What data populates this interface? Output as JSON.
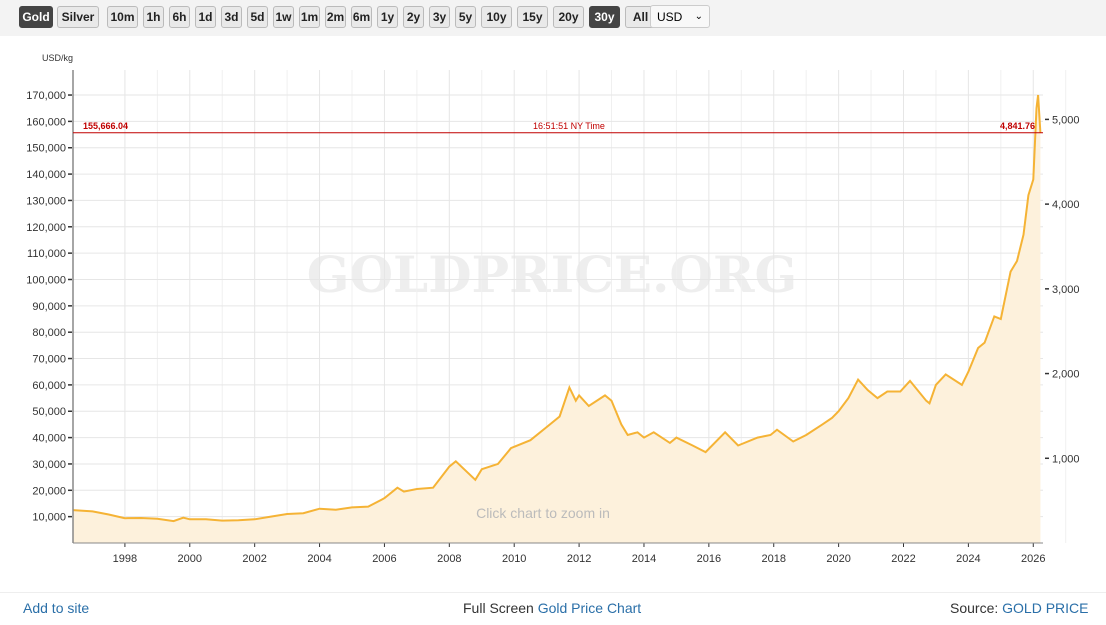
{
  "toolbar": {
    "metals": [
      {
        "label": "Gold",
        "active": true
      },
      {
        "label": "Silver",
        "active": false
      }
    ],
    "ranges": [
      {
        "label": "10m"
      },
      {
        "label": "1h"
      },
      {
        "label": "6h"
      },
      {
        "label": "1d"
      },
      {
        "label": "3d"
      },
      {
        "label": "5d"
      },
      {
        "label": "1w"
      },
      {
        "label": "1m"
      },
      {
        "label": "2m"
      },
      {
        "label": "6m"
      },
      {
        "label": "1y"
      },
      {
        "label": "2y"
      },
      {
        "label": "3y"
      },
      {
        "label": "5y"
      },
      {
        "label": "10y"
      },
      {
        "label": "15y"
      },
      {
        "label": "20y"
      },
      {
        "label": "30y",
        "active": true
      },
      {
        "label": "All"
      }
    ],
    "currency": "USD"
  },
  "chart_data": {
    "type": "area",
    "ylabel": "USD/kg",
    "watermark": "GOLDPRICE.ORG",
    "hint": "Click chart to zoom in",
    "xlim": [
      1996.4,
      2026.3
    ],
    "ylim": [
      0,
      179500
    ],
    "x_ticks": [
      "1998",
      "2000",
      "2002",
      "2004",
      "2006",
      "2008",
      "2010",
      "2012",
      "2014",
      "2016",
      "2018",
      "2020",
      "2022",
      "2024",
      "2026"
    ],
    "y_ticks_left": [
      10000,
      20000,
      30000,
      40000,
      50000,
      60000,
      70000,
      80000,
      90000,
      100000,
      110000,
      120000,
      130000,
      140000,
      150000,
      160000,
      170000
    ],
    "y_ticks_left_labels": [
      "10,000",
      "20,000",
      "30,000",
      "40,000",
      "50,000",
      "60,000",
      "70,000",
      "80,000",
      "90,000",
      "100,000",
      "110,000",
      "120,000",
      "130,000",
      "140,000",
      "150,000",
      "160,000",
      "170,000"
    ],
    "y_ticks_right_labels": [
      "1,000",
      "2,000",
      "3,000",
      "4,000",
      "5,000"
    ],
    "y_ticks_right": [
      1000,
      2000,
      3000,
      4000,
      5000
    ],
    "right_unit_factor_kg_per_oz": 32.1507,
    "grid": true,
    "current_line": {
      "value": 155666.04,
      "label_left": "155,666.04",
      "label_center": "16:51:51 NY Time",
      "label_right": "4,841.76",
      "color": "#c00000"
    },
    "line_color": "#f5b335",
    "fill_color": "#fdf1dc",
    "series": [
      {
        "x": [
          1996.4,
          1997.0,
          1997.5,
          1998.0,
          1998.5,
          1999.0,
          1999.5,
          1999.8,
          2000.0,
          2000.5,
          2001.0,
          2001.5,
          2002.0,
          2002.5,
          2003.0,
          2003.5,
          2004.0,
          2004.5,
          2005.0,
          2005.5,
          2006.0,
          2006.4,
          2006.6,
          2007.0,
          2007.5,
          2008.0,
          2008.2,
          2008.8,
          2009.0,
          2009.5,
          2009.9,
          2010.5,
          2011.0,
          2011.4,
          2011.7,
          2011.9,
          2012.0,
          2012.3,
          2012.8,
          2013.0,
          2013.3,
          2013.5,
          2013.8,
          2014.0,
          2014.3,
          2014.8,
          2015.0,
          2015.5,
          2015.9,
          2016.5,
          2016.9,
          2017.5,
          2017.9,
          2018.1,
          2018.6,
          2019.0,
          2019.5,
          2019.8,
          2020.0,
          2020.3,
          2020.6,
          2020.9,
          2021.2,
          2021.5,
          2021.9,
          2022.2,
          2022.7,
          2022.8,
          2023.0,
          2023.3,
          2023.8,
          2024.0,
          2024.3,
          2024.5,
          2024.8,
          2025.0,
          2025.3,
          2025.5,
          2025.7,
          2025.85,
          2026.0,
          2026.1,
          2026.15,
          2026.22
        ],
        "y": [
          12500,
          12000,
          10800,
          9400,
          9500,
          9200,
          8300,
          9600,
          9000,
          9000,
          8500,
          8600,
          9000,
          10000,
          11000,
          11300,
          13000,
          12600,
          13500,
          13800,
          17000,
          21000,
          19500,
          20500,
          21000,
          29000,
          31000,
          24000,
          28000,
          30000,
          36000,
          39000,
          44000,
          48000,
          59000,
          54000,
          56000,
          52000,
          56000,
          54000,
          45000,
          41000,
          42000,
          40000,
          42000,
          38000,
          40000,
          37000,
          34500,
          42000,
          37000,
          40000,
          41000,
          43000,
          38500,
          41000,
          45000,
          47500,
          50000,
          55000,
          62000,
          58000,
          55000,
          57500,
          57500,
          61500,
          54000,
          53000,
          60000,
          64000,
          60000,
          65000,
          74000,
          76000,
          86000,
          85000,
          103000,
          107000,
          117000,
          132000,
          138000,
          165000,
          170000,
          155666
        ]
      }
    ]
  },
  "footer": {
    "add": "Add to site",
    "full_prefix": "Full Screen ",
    "full_link": "Gold Price Chart",
    "source_prefix": "Source: ",
    "source_link": "GOLD PRICE"
  }
}
